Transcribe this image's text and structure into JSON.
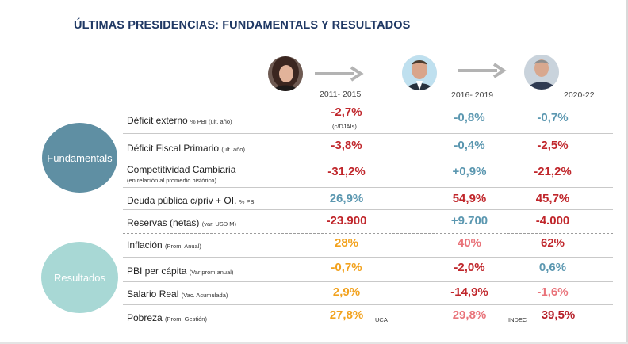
{
  "title": "ÚLTIMAS PRESIDENCIAS: FUNDAMENTALS Y RESULTADOS",
  "periods": [
    "2011- 2015",
    "2016- 2019",
    "2020-22"
  ],
  "groups": {
    "fundamentals": "Fundamentals",
    "resultados": "Resultados"
  },
  "rows": [
    {
      "label": "Déficit externo",
      "unit": "% PBI (ult. año)",
      "values": [
        "-2,7%",
        "-0,8%",
        "-0,7%"
      ],
      "note": "(c/DJAIs)"
    },
    {
      "label": "Déficit Fiscal Primario",
      "unit": "(ult. año)",
      "values": [
        "-3,8%",
        "-0,4%",
        "-2,5%"
      ]
    },
    {
      "label": "Competitividad Cambiaria",
      "unit": "(en relación al promedio  histórico)",
      "values": [
        "-31,2%",
        "+0,9%",
        "-21,2%"
      ]
    },
    {
      "label": "Deuda pública c/priv + OI.",
      "unit": "% PBI",
      "values": [
        "26,9%",
        "54,9%",
        "45,7%"
      ]
    },
    {
      "label": "Reservas (netas)",
      "unit": "(var. USD M)",
      "values": [
        "-23.900",
        "+9.700",
        "-4.000"
      ]
    },
    {
      "label": "Inflación",
      "unit": "(Prom. Anual)",
      "values": [
        "28%",
        "40%",
        "62%"
      ]
    },
    {
      "label": "PBI per cápita",
      "unit": "(Var prom anual)",
      "values": [
        "-0,7%",
        "-2,0%",
        "0,6%"
      ]
    },
    {
      "label": "Salario Real",
      "unit": "(Vac. Acumulada)",
      "values": [
        "2,9%",
        "-14,9%",
        "-1,6%"
      ]
    },
    {
      "label": "Pobreza",
      "unit": "(Prom. Gestión)",
      "values": [
        "27,8%",
        "29,8%",
        "39,5%"
      ]
    }
  ],
  "sources": {
    "col1": "UCA",
    "col3": "INDEC"
  },
  "colors": {
    "title": "#1f3864",
    "red": "#c0262b",
    "blue": "#5b97b0",
    "orange": "#f2a21e",
    "salmon": "#e9737a",
    "fundamentals_circle": "#5f8fa3",
    "resultados_circle": "#a8d8d5"
  }
}
